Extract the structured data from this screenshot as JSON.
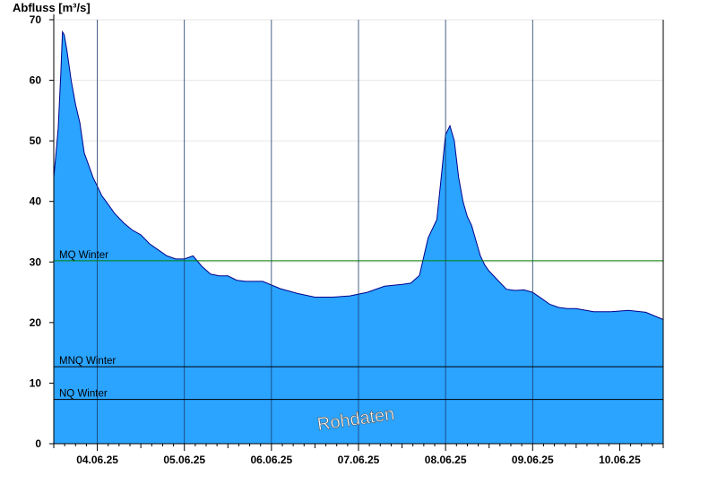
{
  "chart_data": {
    "type": "area",
    "ylabel": "Abfluss [m³/s]",
    "ylim": [
      0,
      70
    ],
    "yticks": [
      0,
      10,
      20,
      30,
      40,
      50,
      60,
      70
    ],
    "xlim": [
      0,
      7
    ],
    "x_tick_labels": [
      "04.06.25",
      "05.06.25",
      "06.06.25",
      "07.06.25",
      "08.06.25",
      "09.06.25",
      "10.06.25"
    ],
    "grid": true,
    "fill_color": "#2aa4ff",
    "line_color": "#00008b",
    "series": [
      {
        "x": [
          0,
          0.02,
          0.05,
          0.08,
          0.1,
          0.12,
          0.15,
          0.2,
          0.25,
          0.3,
          0.35,
          0.4,
          0.45,
          0.5,
          0.55,
          0.6,
          0.7,
          0.8,
          0.9,
          1.0,
          1.1,
          1.2,
          1.3,
          1.4,
          1.5,
          1.6,
          1.7,
          1.8,
          1.9,
          2.0,
          2.1,
          2.2,
          2.3,
          2.4,
          2.6,
          2.8,
          3.0,
          3.2,
          3.4,
          3.6,
          3.8,
          4.0,
          4.1,
          4.2,
          4.3,
          4.4,
          4.45,
          4.5,
          4.55,
          4.6,
          4.65,
          4.7,
          4.75,
          4.8,
          4.85,
          4.9,
          4.95,
          5.0,
          5.1,
          5.2,
          5.3,
          5.4,
          5.5,
          5.6,
          5.7,
          5.8,
          5.9,
          6.0,
          6.2,
          6.4,
          6.6,
          6.8,
          7.0
        ],
        "y": [
          44,
          47,
          52,
          61,
          68,
          67.5,
          65,
          60,
          56,
          53,
          48,
          46,
          44,
          42.5,
          41,
          40,
          38,
          36.5,
          35.3,
          34.5,
          33,
          32,
          31,
          30.5,
          30.5,
          31,
          29.3,
          28,
          27.7,
          27.7,
          27,
          26.8,
          26.8,
          26.8,
          25.6,
          24.8,
          24.2,
          24.2,
          24.4,
          25,
          26,
          26.3,
          26.5,
          27.8,
          34,
          37,
          44,
          51,
          52.5,
          50,
          44,
          40,
          37.5,
          36,
          33.5,
          31,
          29.5,
          28.5,
          27,
          25.5,
          25.3,
          25.4,
          25,
          24,
          23,
          22.5,
          22.3,
          22.3,
          21.8,
          21.8,
          22,
          21.7,
          20.5
        ]
      }
    ],
    "reference_lines": [
      {
        "name": "MQ Winter",
        "value": 30.2,
        "color": "#008000"
      },
      {
        "name": "MNQ Winter",
        "value": 12.7,
        "color": "#000000"
      },
      {
        "name": "NQ Winter",
        "value": 7.3,
        "color": "#000000"
      }
    ],
    "watermark": "Rohdaten"
  }
}
